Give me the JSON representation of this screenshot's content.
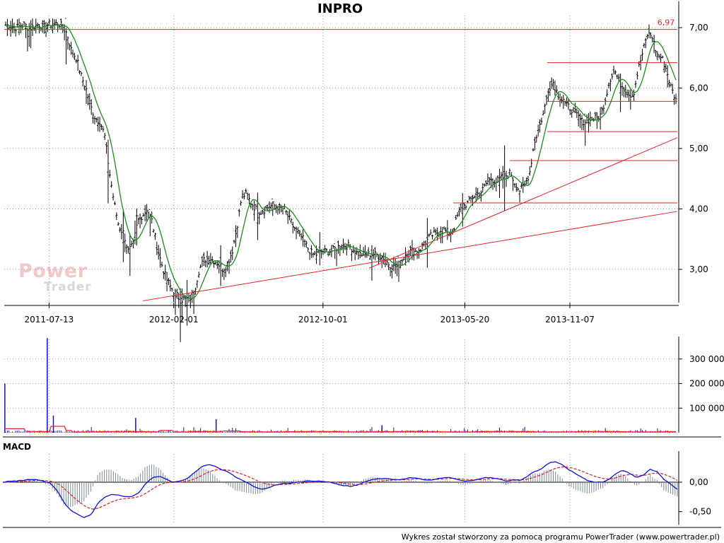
{
  "title": "INPRO",
  "footer": "Wykres został stworzony za pomocą programu PowerTrader (www.powertrader.pl)",
  "logo": {
    "line1": "Power",
    "line2": "Trader"
  },
  "colors": {
    "price_bar": "#000000",
    "moving_average": "#1e8c1e",
    "support_resistance": "#e8202a",
    "volume_bar": "#1010c8",
    "volume_average": "#e8202a",
    "macd_line": "#1010e0",
    "macd_signal": "#e02020",
    "macd_histogram": "#7a8c9a",
    "grid": "#9a9a9a"
  },
  "chart_data": [
    {
      "type": "line",
      "title": "INPRO",
      "x_ticks": [
        "2011-07-13",
        "2012-02-01",
        "2012-10-01",
        "2013-05-20",
        "2013-11-07"
      ],
      "y_ticks": [
        "3,00",
        "4,00",
        "5,00",
        "6,00",
        "7,00"
      ],
      "ylim": [
        2.45,
        7.2
      ],
      "annotation": {
        "label": "6,97",
        "value": 6.97
      },
      "series": [
        {
          "style": "ohlc-bars",
          "values": [
            7.05,
            7.04,
            7.0,
            7.02,
            7.05,
            6.98,
            7.02,
            7.06,
            7.0,
            7.06,
            7.04,
            7.08,
            7.02,
            6.9,
            6.6,
            6.5,
            6.2,
            6.0,
            5.7,
            5.5,
            5.45,
            5.2,
            4.6,
            4.1,
            3.7,
            3.6,
            3.3,
            3.4,
            3.8,
            3.9,
            4.0,
            3.8,
            3.4,
            3.1,
            2.85,
            2.7,
            2.6,
            2.5,
            2.5,
            2.52,
            2.65,
            3.0,
            3.15,
            3.2,
            3.15,
            3.1,
            3.0,
            3.1,
            3.3,
            3.7,
            4.2,
            4.25,
            4.1,
            4.0,
            3.95,
            4.0,
            4.05,
            4.05,
            4.02,
            4.0,
            3.85,
            3.7,
            3.6,
            3.5,
            3.35,
            3.25,
            3.25,
            3.3,
            3.3,
            3.3,
            3.35,
            3.4,
            3.4,
            3.38,
            3.3,
            3.25,
            3.25,
            3.25,
            3.25,
            3.22,
            3.2,
            3.1,
            3.05,
            3.05,
            3.15,
            3.3,
            3.3,
            3.3,
            3.35,
            3.45,
            3.55,
            3.6,
            3.62,
            3.65,
            3.6,
            3.7,
            3.95,
            4.05,
            4.1,
            4.2,
            4.25,
            4.3,
            4.45,
            4.5,
            4.45,
            4.5,
            4.55,
            4.6,
            4.4,
            4.3,
            4.4,
            4.6,
            5.1,
            5.35,
            5.6,
            6.0,
            6.1,
            5.9,
            5.8,
            5.7,
            5.65,
            5.55,
            5.45,
            5.45,
            5.5,
            5.5,
            5.55,
            5.8,
            6.15,
            6.3,
            6.1,
            6.0,
            5.9,
            5.9,
            6.3,
            6.6,
            6.9,
            6.85,
            6.55,
            6.5,
            6.3,
            6.0,
            5.8
          ]
        },
        {
          "name": "",
          "style": "moving-average"
        }
      ],
      "lines": {
        "horizontal_levels": [
          {
            "value": 6.97,
            "from": "2011-05-01",
            "to": "2014-05-01"
          },
          {
            "value": 6.42,
            "from": "2013-10-01",
            "to": "2014-05-01"
          },
          {
            "value": 5.78,
            "from": "2013-10-01",
            "to": "2014-05-01"
          },
          {
            "value": 5.28,
            "from": "2013-10-01",
            "to": "2014-05-01"
          },
          {
            "value": 4.8,
            "from": "2013-08-01",
            "to": "2014-05-01"
          },
          {
            "value": 4.1,
            "from": "2013-05-01",
            "to": "2014-05-01"
          }
        ],
        "trendlines": [
          {
            "x1": "2011-12-13",
            "y1": 2.48,
            "x2": "2014-05-01",
            "y2": 3.96
          },
          {
            "x1": "2012-12-15",
            "y1": 3.02,
            "x2": "2014-05-01",
            "y2": 5.18
          }
        ]
      }
    },
    {
      "type": "bar",
      "title": "",
      "y_ticks": [
        "100 000",
        "200 000",
        "300 000"
      ],
      "ylim": [
        0,
        380000
      ],
      "series": [
        {
          "style": "volume-bars",
          "spikes": [
            {
              "x": "2011-05-02",
              "value": 200000
            },
            {
              "x": "2011-07-10",
              "value": 385000
            },
            {
              "x": "2011-07-20",
              "value": 70000
            },
            {
              "x": "2011-12-01",
              "value": 60000
            },
            {
              "x": "2012-04-10",
              "value": 55000
            },
            {
              "x": "2013-01-05",
              "value": 30000
            }
          ]
        },
        {
          "style": "volume-average"
        }
      ]
    },
    {
      "type": "line",
      "title": "MACD",
      "y_ticks": [
        "-0,50",
        "0,00"
      ],
      "ylim": [
        -0.72,
        0.48
      ],
      "series": [
        {
          "style": "macd",
          "values": [
            0.0,
            0.02,
            0.02,
            0.03,
            0.05,
            0.04,
            0.02,
            -0.02,
            -0.15,
            -0.35,
            -0.48,
            -0.55,
            -0.6,
            -0.55,
            -0.35,
            -0.25,
            -0.2,
            -0.22,
            -0.25,
            -0.24,
            -0.18,
            -0.02,
            0.08,
            0.1,
            0.05,
            0.0,
            0.02,
            0.06,
            0.15,
            0.25,
            0.3,
            0.28,
            0.22,
            0.18,
            0.1,
            0.04,
            -0.02,
            -0.08,
            -0.12,
            -0.1,
            -0.05,
            -0.02,
            -0.02,
            0.0,
            0.01,
            0.02,
            0.02,
            0.01,
            0.0,
            -0.03,
            -0.06,
            -0.07,
            -0.05,
            0.0,
            0.04,
            0.06,
            0.06,
            0.05,
            0.04,
            0.06,
            0.08,
            0.06,
            0.03,
            0.04,
            0.06,
            0.08,
            0.07,
            0.04,
            0.02,
            0.03,
            0.06,
            0.08,
            0.07,
            0.05,
            0.02,
            0.04,
            0.03,
            0.1,
            0.18,
            0.22,
            0.32,
            0.35,
            0.3,
            0.22,
            0.15,
            0.08,
            0.02,
            0.0,
            0.0,
            0.05,
            0.15,
            0.2,
            0.15,
            0.08,
            0.12,
            0.22,
            0.18,
            0.05,
            -0.03,
            -0.12
          ]
        },
        {
          "style": "signal"
        },
        {
          "style": "histogram"
        }
      ]
    }
  ]
}
